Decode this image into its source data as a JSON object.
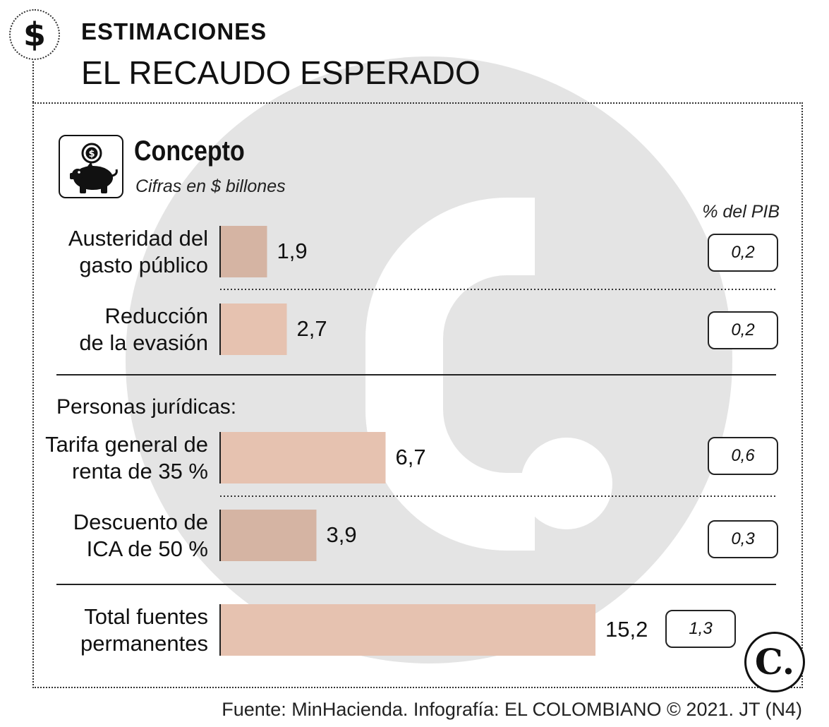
{
  "header": {
    "kicker": "ESTIMACIONES",
    "title": "EL RECAUDO ESPERADO",
    "icon": "dollar-icon"
  },
  "chart_data": {
    "type": "bar",
    "orientation": "horizontal",
    "title": "Concepto",
    "subtitle": "Cifras en $ billones",
    "secondary_header": "% del PIB",
    "section_label": "Personas jurídicas:",
    "categories": [
      "Austeridad del gasto público",
      "Reducción de la evasión",
      "Tarifa general de renta de 35 %",
      "Descuento de ICA de 50 %",
      "Total fuentes permanentes"
    ],
    "label_lines": [
      [
        "Austeridad del",
        "gasto público"
      ],
      [
        "Reducción",
        "de la evasión"
      ],
      [
        "Tarifa general de",
        "renta de 35 %"
      ],
      [
        "Descuento de",
        "ICA de 50 %"
      ],
      [
        "Total fuentes",
        "permanentes"
      ]
    ],
    "values": [
      1.9,
      2.7,
      6.7,
      3.9,
      15.2
    ],
    "value_labels": [
      "1,9",
      "2,7",
      "6,7",
      "3,9",
      "15,2"
    ],
    "pib_percent": [
      "0,2",
      "0,2",
      "0,6",
      "0,3",
      "1,3"
    ],
    "xlim": [
      0,
      15.2
    ],
    "bar_colors": [
      "#d5b4a3",
      "#e6c2b0",
      "#e6c2b0",
      "#d5b4a3",
      "#e6c2b0"
    ],
    "grid": false
  },
  "footer": {
    "source": "Fuente: MinHacienda. Infografía: EL COLOMBIANO © 2021. JT (N4)",
    "logo_letter": "C."
  },
  "icons": {
    "piggy": "piggy-bank-icon",
    "logo": "el-colombiano-logo"
  }
}
